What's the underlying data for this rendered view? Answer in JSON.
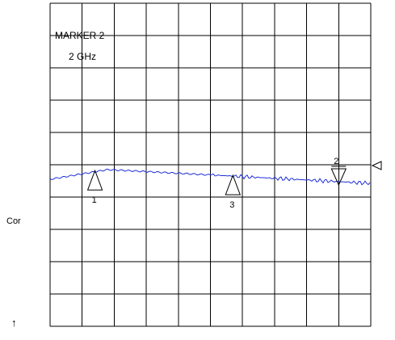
{
  "marker_readout": {
    "title": "MARKER 2",
    "frequency": "2 GHz"
  },
  "side_labels": {
    "correction": "Cor",
    "arrow": "↑"
  },
  "markers": [
    {
      "label": "1",
      "type": "normal",
      "trace_position": 0.14
    },
    {
      "label": "3",
      "type": "normal",
      "trace_position": 0.57
    },
    {
      "label": "2",
      "type": "delta",
      "trace_position": 0.9
    }
  ],
  "reference_marker": {
    "icon": "reference-level-triangle-icon"
  },
  "colors": {
    "trace": "#1f2fd8",
    "grid": "#000000",
    "background": "#ffffff"
  }
}
